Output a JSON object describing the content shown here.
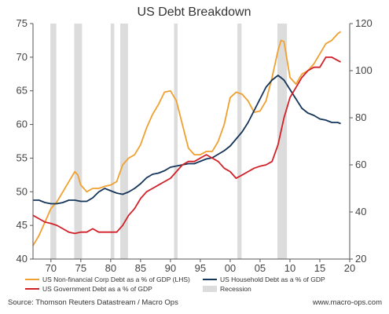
{
  "chart_data": {
    "type": "line",
    "title": "US Debt Breakdown",
    "x_ticks": [
      70,
      75,
      80,
      85,
      90,
      95,
      "00",
      "05",
      10,
      15,
      20
    ],
    "x_range": [
      1967,
      2020
    ],
    "y_left": {
      "range": [
        40,
        75
      ],
      "ticks": [
        40,
        45,
        50,
        55,
        60,
        65,
        70,
        75
      ]
    },
    "y_right": {
      "range": [
        20,
        120
      ],
      "ticks": [
        20,
        40,
        60,
        80,
        100,
        120
      ]
    },
    "grid": false,
    "legend_placement": "bottom",
    "recessions": [
      [
        1969.9,
        1970.9
      ],
      [
        1973.9,
        1975.2
      ],
      [
        1980.0,
        1980.6
      ],
      [
        1981.6,
        1982.9
      ],
      [
        1990.6,
        1991.2
      ],
      [
        2001.2,
        2001.9
      ],
      [
        2007.9,
        2009.5
      ]
    ],
    "series": [
      {
        "name": "US Non-financial Corp Debt as a % of GDP (LHS)",
        "axis": "left",
        "color": "#f0a030",
        "x": [
          1967,
          1968,
          1969,
          1970,
          1971,
          1972,
          1973,
          1974,
          1974.5,
          1975,
          1976,
          1977,
          1978,
          1979,
          1980,
          1981,
          1982,
          1983,
          1984,
          1985,
          1986,
          1987,
          1988,
          1989,
          1990,
          1991,
          1992,
          1993,
          1994,
          1995,
          1996,
          1997,
          1998,
          1999,
          2000,
          2001,
          2002,
          2003,
          2004,
          2005,
          2006,
          2007,
          2008,
          2008.5,
          2009,
          2010,
          2011,
          2012,
          2013,
          2014,
          2015,
          2016,
          2017,
          2018,
          2018.5
        ],
        "y": [
          42.0,
          43.5,
          45.5,
          47.5,
          48.5,
          50.0,
          51.5,
          53.0,
          52.5,
          51.0,
          50.0,
          50.5,
          50.5,
          50.8,
          51.0,
          51.5,
          54.0,
          55.0,
          55.5,
          57.0,
          59.5,
          61.5,
          63.0,
          64.8,
          65.0,
          63.5,
          60.0,
          56.5,
          55.5,
          55.5,
          56.0,
          56.0,
          57.5,
          60.0,
          64.0,
          64.8,
          64.5,
          63.5,
          61.8,
          62.0,
          63.5,
          67.0,
          71.0,
          72.5,
          72.3,
          67.0,
          66.0,
          67.5,
          68.0,
          69.0,
          70.5,
          72.0,
          72.5,
          73.5,
          73.8
        ]
      },
      {
        "name": "US Household Debt as a % of GDP",
        "axis": "right",
        "color": "#15355a",
        "x": [
          1967,
          1968,
          1969,
          1970,
          1971,
          1972,
          1973,
          1974,
          1975,
          1976,
          1977,
          1978,
          1979,
          1980,
          1981,
          1982,
          1983,
          1984,
          1985,
          1986,
          1987,
          1988,
          1989,
          1990,
          1991,
          1992,
          1993,
          1994,
          1995,
          1996,
          1997,
          1998,
          1999,
          2000,
          2001,
          2002,
          2003,
          2004,
          2005,
          2006,
          2007,
          2008,
          2009,
          2010,
          2011,
          2012,
          2013,
          2014,
          2015,
          2016,
          2017,
          2018,
          2018.5
        ],
        "y": [
          45.0,
          45.0,
          44.0,
          43.5,
          43.5,
          44.0,
          45.0,
          45.0,
          44.5,
          44.5,
          46.0,
          48.5,
          50.0,
          49.0,
          48.0,
          47.5,
          48.5,
          50.0,
          52.0,
          54.5,
          56.0,
          56.5,
          57.5,
          59.0,
          59.5,
          60.0,
          60.5,
          60.5,
          61.5,
          62.5,
          63.0,
          64.5,
          66.0,
          68.0,
          71.0,
          74.0,
          78.0,
          83.0,
          88.0,
          93.0,
          96.0,
          98.0,
          96.0,
          92.0,
          88.0,
          84.0,
          82.0,
          81.0,
          79.5,
          79.0,
          78.0,
          78.0,
          77.5
        ]
      },
      {
        "name": "US Government Debt as a % of GDP",
        "axis": "left",
        "color": "#d22028",
        "x": [
          1967,
          1968,
          1969,
          1970,
          1971,
          1972,
          1973,
          1974,
          1975,
          1976,
          1977,
          1978,
          1979,
          1980,
          1981,
          1982,
          1983,
          1984,
          1985,
          1986,
          1987,
          1988,
          1989,
          1990,
          1991,
          1992,
          1993,
          1994,
          1995,
          1996,
          1997,
          1998,
          1999,
          2000,
          2001,
          2002,
          2003,
          2004,
          2005,
          2006,
          2007,
          2008,
          2009,
          2010,
          2011,
          2012,
          2013,
          2014,
          2015,
          2016,
          2017,
          2018,
          2018.5
        ],
        "y": [
          46.5,
          46.0,
          45.5,
          45.3,
          45.0,
          44.5,
          44.0,
          43.8,
          44.0,
          44.0,
          44.5,
          44.0,
          44.0,
          44.0,
          44.0,
          45.0,
          46.5,
          47.5,
          49.0,
          50.0,
          50.5,
          51.0,
          51.5,
          52.0,
          53.0,
          54.0,
          54.5,
          54.5,
          55.0,
          55.5,
          55.0,
          54.5,
          53.5,
          53.0,
          52.0,
          52.5,
          53.0,
          53.5,
          53.8,
          54.0,
          54.5,
          57.0,
          61.0,
          64.0,
          65.5,
          67.0,
          68.0,
          68.5,
          68.5,
          70.0,
          70.0,
          69.5,
          69.3
        ]
      }
    ],
    "colors": {
      "recession": "#dcdcdc",
      "axis": "#555555"
    }
  },
  "legend": [
    {
      "label": "US Non-financial Corp Debt as a % of GDP (LHS)",
      "color": "#f0a030",
      "kind": "line"
    },
    {
      "label": "US Household Debt as a % of GDP",
      "color": "#15355a",
      "kind": "line"
    },
    {
      "label": "US Government Debt as a % of GDP",
      "color": "#d22028",
      "kind": "line"
    },
    {
      "label": "Recession",
      "color": "#dcdcdc",
      "kind": "box"
    }
  ],
  "footer": {
    "source": "Source: Thomson Reuters Datastream / Macro Ops",
    "website": "www.macro-ops.com"
  }
}
